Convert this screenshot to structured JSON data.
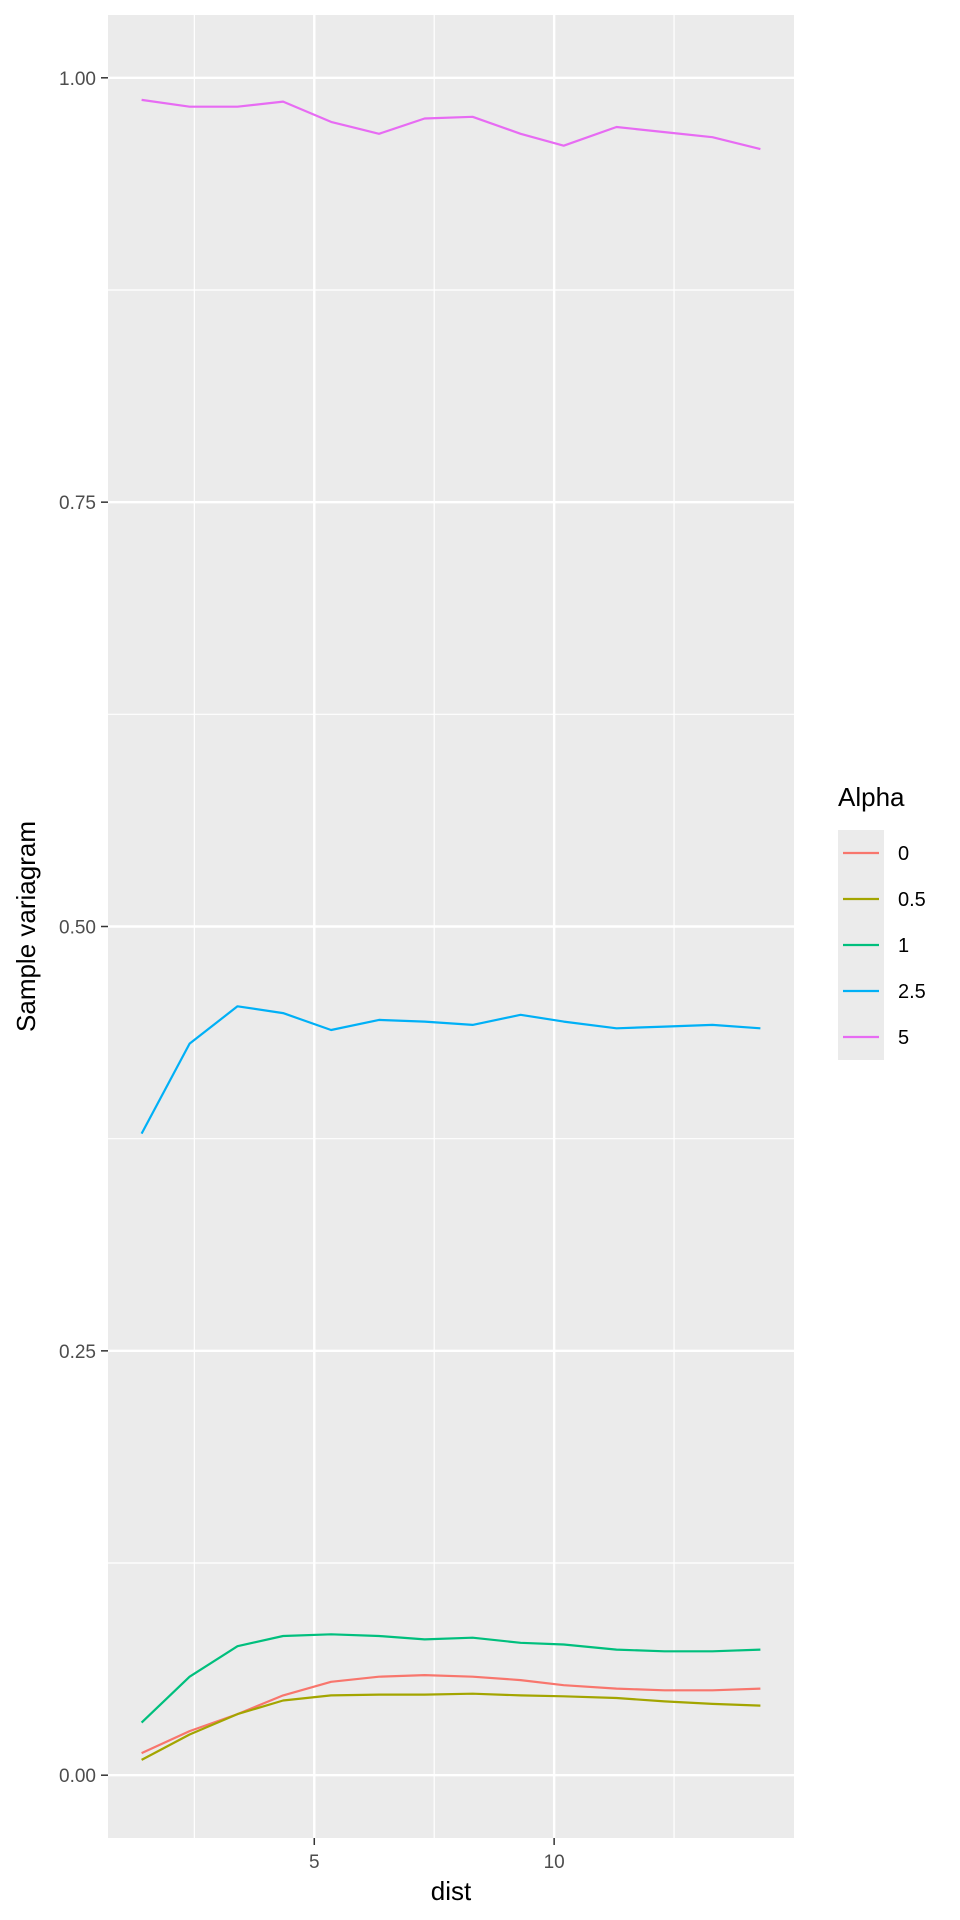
{
  "chart_data": {
    "type": "line",
    "title": "",
    "xlabel": "dist",
    "ylabel": "Sample variagram",
    "xlim": [
      0.7,
      15.0
    ],
    "ylim": [
      -0.037,
      1.037
    ],
    "x_ticks": [
      5,
      10
    ],
    "x_tick_labels": [
      "5",
      "10"
    ],
    "y_ticks": [
      0.0,
      0.25,
      0.5,
      0.75,
      1.0
    ],
    "y_tick_labels": [
      "0.00",
      "0.25",
      "0.50",
      "0.75",
      "1.00"
    ],
    "grid": true,
    "legend": {
      "title": "Alpha",
      "position": "right"
    },
    "x": [
      1.4,
      2.4,
      3.4,
      4.35,
      5.35,
      6.35,
      7.3,
      8.3,
      9.3,
      10.2,
      11.3,
      12.3,
      13.3,
      14.3
    ],
    "series": [
      {
        "name": "0",
        "color": "#F8766D",
        "values": [
          0.013,
          0.026,
          0.036,
          0.047,
          0.055,
          0.058,
          0.059,
          0.058,
          0.056,
          0.053,
          0.051,
          0.05,
          0.05,
          0.051
        ]
      },
      {
        "name": "0.5",
        "color": "#A3A500",
        "values": [
          0.009,
          0.024,
          0.036,
          0.044,
          0.047,
          0.0475,
          0.0475,
          0.048,
          0.047,
          0.0465,
          0.0455,
          0.0435,
          0.042,
          0.041
        ]
      },
      {
        "name": "1",
        "color": "#00BF7D",
        "values": [
          0.031,
          0.058,
          0.076,
          0.082,
          0.083,
          0.082,
          0.08,
          0.081,
          0.078,
          0.077,
          0.074,
          0.073,
          0.073,
          0.074
        ]
      },
      {
        "name": "2.5",
        "color": "#00B0F6",
        "values": [
          0.378,
          0.431,
          0.453,
          0.449,
          0.439,
          0.445,
          0.444,
          0.442,
          0.448,
          0.444,
          0.44,
          0.441,
          0.442,
          0.44
        ]
      },
      {
        "name": "5",
        "color": "#E76BF3",
        "values": [
          0.987,
          0.983,
          0.983,
          0.986,
          0.974,
          0.967,
          0.976,
          0.977,
          0.967,
          0.96,
          0.971,
          0.968,
          0.965,
          0.958
        ]
      }
    ]
  }
}
